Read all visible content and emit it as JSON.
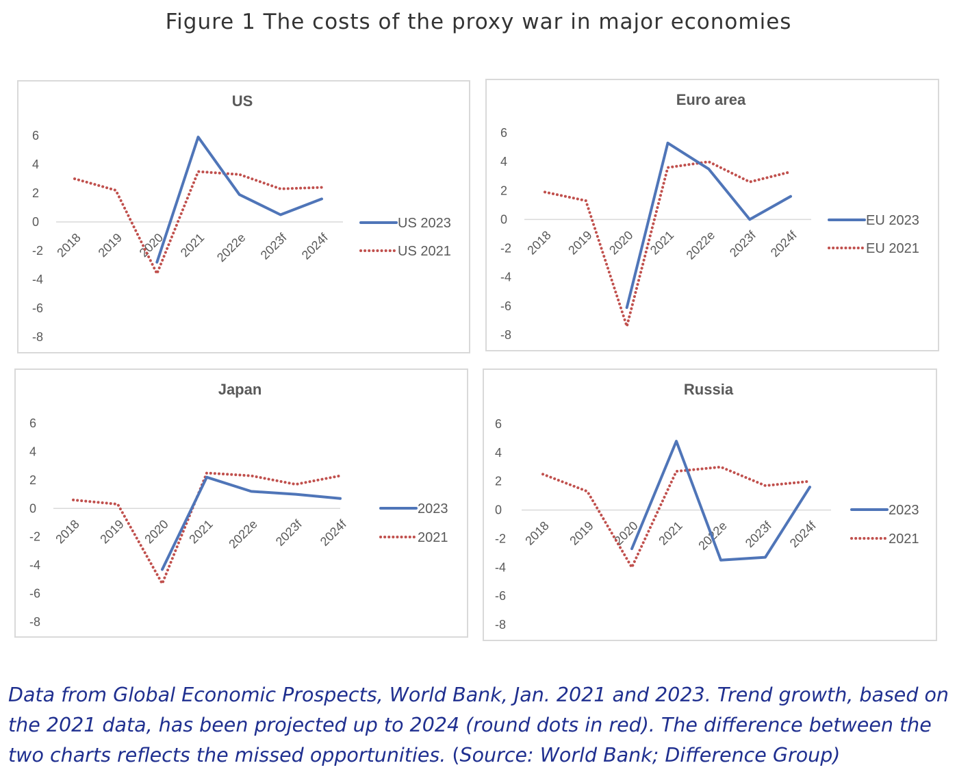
{
  "figure": {
    "title": "Figure 1   The costs of the proxy war in major economies"
  },
  "chart_data": [
    {
      "type": "line",
      "title": "US",
      "categories": [
        "2018",
        "2019",
        "2020",
        "2021",
        "2022e",
        "2023f",
        "2024f"
      ],
      "yticks": [
        "6",
        "4",
        "2",
        "0",
        "-2",
        "-4",
        "-6",
        "-8"
      ],
      "ylim": [
        -8,
        6
      ],
      "series": [
        {
          "name": "US 2023",
          "values": [
            null,
            null,
            -2.8,
            5.9,
            1.9,
            0.5,
            1.6
          ],
          "color": "#4f75b8",
          "style": "solid"
        },
        {
          "name": "US 2021",
          "values": [
            3.0,
            2.2,
            -3.6,
            3.5,
            3.3,
            2.3,
            2.4
          ],
          "color": "#c0504d",
          "style": "dotted"
        }
      ],
      "legend_position": "right",
      "grid": false
    },
    {
      "type": "line",
      "title": "Euro area",
      "categories": [
        "2018",
        "2019",
        "2020",
        "2021",
        "2022e",
        "2023f",
        "2024f"
      ],
      "yticks": [
        "6",
        "4",
        "2",
        "0",
        "-2",
        "-4",
        "-6",
        "-8"
      ],
      "ylim": [
        -8,
        6
      ],
      "series": [
        {
          "name": "EU 2023",
          "values": [
            null,
            null,
            -6.1,
            5.3,
            3.5,
            0.0,
            1.6
          ],
          "color": "#4f75b8",
          "style": "solid"
        },
        {
          "name": "EU 2021",
          "values": [
            1.9,
            1.3,
            -7.4,
            3.6,
            4.0,
            2.6,
            3.3
          ],
          "color": "#c0504d",
          "style": "dotted"
        }
      ],
      "legend_position": "right",
      "grid": false
    },
    {
      "type": "line",
      "title": "Japan",
      "categories": [
        "2018",
        "2019",
        "2020",
        "2021",
        "2022e",
        "2023f",
        "2024f"
      ],
      "yticks": [
        "6",
        "4",
        "2",
        "0",
        "-2",
        "-4",
        "-6",
        "-8"
      ],
      "ylim": [
        -8,
        6
      ],
      "series": [
        {
          "name": "2023",
          "values": [
            null,
            null,
            -4.3,
            2.2,
            1.2,
            1.0,
            0.7
          ],
          "color": "#4f75b8",
          "style": "solid"
        },
        {
          "name": "2021",
          "values": [
            0.6,
            0.3,
            -5.3,
            2.5,
            2.3,
            1.7,
            2.3
          ],
          "color": "#c0504d",
          "style": "dotted"
        }
      ],
      "legend_position": "right",
      "grid": false
    },
    {
      "type": "line",
      "title": "Russia",
      "categories": [
        "2018",
        "2019",
        "2020",
        "2021",
        "2022e",
        "2023f",
        "2024f"
      ],
      "yticks": [
        "6",
        "4",
        "2",
        "0",
        "-2",
        "-4",
        "-6",
        "-8"
      ],
      "ylim": [
        -8,
        6
      ],
      "series": [
        {
          "name": "2023",
          "values": [
            null,
            null,
            -2.7,
            4.8,
            -3.5,
            -3.3,
            1.6
          ],
          "color": "#4f75b8",
          "style": "solid"
        },
        {
          "name": "2021",
          "values": [
            2.5,
            1.3,
            -4.0,
            2.7,
            3.0,
            1.7,
            2.0
          ],
          "color": "#c0504d",
          "style": "dotted"
        }
      ],
      "legend_position": "right",
      "grid": false
    }
  ],
  "caption": {
    "main": "Data from Global Economic Prospects, World Bank, Jan. 2021 and 2023. Trend growth, based on the 2021 data, has been projected up to 2024 (round dots in red). The difference between the two charts reflects the missed opportunities. ",
    "paren_open": "(",
    "source": "Source: World Bank; Difference Group)"
  }
}
